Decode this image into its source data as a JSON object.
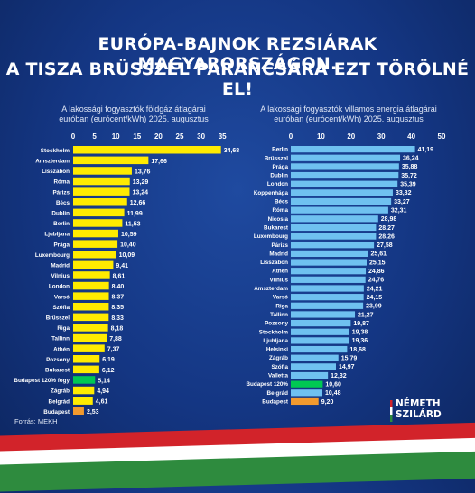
{
  "headline": {
    "line1": "EURÓPA-BAJNOK REZSIÁRAK MAGYARORSZÁGON.",
    "line2": "A TISZA BRÜSSZEL PARANCSÁRA EZT TÖRÖLNÉ EL!"
  },
  "source": "Forrás: MEKH",
  "logo": {
    "line1": "NÉMETH",
    "line2": "SZILÁRD"
  },
  "colors": {
    "bar_yellow": "#ffeb00",
    "bar_blue": "#6fc1f0",
    "highlight_green": "#00c853",
    "highlight_orange": "#f29a2e",
    "flag_red": "#d2232a",
    "flag_white": "#ffffff",
    "flag_green": "#2e8b3e"
  },
  "chart_data": [
    {
      "type": "bar",
      "orientation": "horizontal",
      "title_lines": [
        "A lakossági fogyasztók földgáz átlagárai",
        "euróban (eurócent/kWh) 2025. augusztus"
      ],
      "xlim": [
        0,
        35
      ],
      "ticks": [
        0,
        5,
        10,
        15,
        20,
        25,
        30,
        35
      ],
      "bar_color": "#ffeb00",
      "categories": [
        "Stockholm",
        "Amszterdam",
        "Lisszabon",
        "Róma",
        "Párizs",
        "Bécs",
        "Dublin",
        "Berlin",
        "Ljubljana",
        "Prága",
        "Luxembourg",
        "Madrid",
        "Vilnius",
        "London",
        "Varsó",
        "Szófia",
        "Brüsszel",
        "Riga",
        "Tallinn",
        "Athén",
        "Pozsony",
        "Bukarest",
        "Budapest 120% fogy",
        "Zágráb",
        "Belgrád",
        "Budapest"
      ],
      "values": [
        34.68,
        17.66,
        13.76,
        13.29,
        13.24,
        12.66,
        11.99,
        11.53,
        10.59,
        10.4,
        10.09,
        9.41,
        8.61,
        8.4,
        8.37,
        8.35,
        8.33,
        8.18,
        7.88,
        7.37,
        6.19,
        6.12,
        5.14,
        4.94,
        4.61,
        2.53
      ],
      "labels": [
        "34,68",
        "17,66",
        "13,76",
        "13,29",
        "13,24",
        "12,66",
        "11,99",
        "11,53",
        "10,59",
        "10,40",
        "10,09",
        "9,41",
        "8,61",
        "8,40",
        "8,37",
        "8,35",
        "8,33",
        "8,18",
        "7,88",
        "7,37",
        "6,19",
        "6,12",
        "5,14",
        "4,94",
        "4,61",
        "2,53"
      ],
      "highlights": {
        "Budapest 120% fogy": "#00c853",
        "Budapest": "#f29a2e"
      }
    },
    {
      "type": "bar",
      "orientation": "horizontal",
      "title_lines": [
        "A lakossági fogyasztók villamos energia átlagárai",
        "euróban (eurócent/kWh) 2025. augusztus"
      ],
      "xlim": [
        0,
        50
      ],
      "ticks": [
        0,
        10,
        20,
        30,
        40,
        50
      ],
      "bar_color": "#6fc1f0",
      "categories": [
        "Berlin",
        "Brüsszel",
        "Prága",
        "Dublin",
        "London",
        "Koppenhága",
        "Bécs",
        "Róma",
        "Nicosia",
        "Bukarest",
        "Luxembourg",
        "Párizs",
        "Madrid",
        "Lisszabon",
        "Athén",
        "Vilnius",
        "Amszterdam",
        "Varsó",
        "Riga",
        "Tallinn",
        "Pozsony",
        "Stockholm",
        "Ljubljana",
        "Helsinki",
        "Zágráb",
        "Szófia",
        "Valletta",
        "Budapest 120%",
        "Belgrád",
        "Budapest"
      ],
      "values": [
        41.19,
        36.24,
        35.88,
        35.72,
        35.39,
        33.82,
        33.27,
        32.31,
        28.98,
        28.27,
        28.26,
        27.58,
        25.61,
        25.15,
        24.86,
        24.76,
        24.21,
        24.15,
        23.99,
        21.27,
        19.87,
        19.38,
        19.36,
        18.68,
        15.79,
        14.97,
        12.32,
        10.6,
        10.48,
        9.2
      ],
      "labels": [
        "41,19",
        "36,24",
        "35,88",
        "35,72",
        "35,39",
        "33,82",
        "33,27",
        "32,31",
        "28,98",
        "28,27",
        "28,26",
        "27,58",
        "25,61",
        "25,15",
        "24,86",
        "24,76",
        "24,21",
        "24,15",
        "23,99",
        "21,27",
        "19,87",
        "19,38",
        "19,36",
        "18,68",
        "15,79",
        "14,97",
        "12,32",
        "10,60",
        "10,48",
        "9,20"
      ],
      "highlights": {
        "Budapest 120%": "#00c853",
        "Budapest": "#f29a2e"
      }
    }
  ]
}
